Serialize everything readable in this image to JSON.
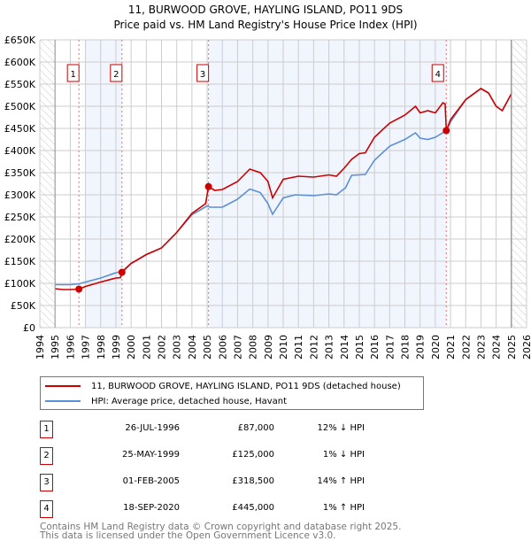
{
  "chart_data": {
    "type": "line",
    "title": "11, BURWOOD GROVE, HAYLING ISLAND, PO11 9DS",
    "subtitle": "Price paid vs. HM Land Registry's House Price Index (HPI)",
    "xlim": [
      1994,
      2026
    ],
    "ylim": [
      0,
      650000
    ],
    "x_ticks": [
      "1994",
      "1995",
      "1996",
      "1997",
      "1998",
      "1999",
      "2000",
      "2001",
      "2002",
      "2003",
      "2004",
      "2005",
      "2006",
      "2007",
      "2008",
      "2009",
      "2010",
      "2011",
      "2012",
      "2013",
      "2014",
      "2015",
      "2016",
      "2017",
      "2018",
      "2019",
      "2020",
      "2021",
      "2022",
      "2023",
      "2024",
      "2025",
      "2026"
    ],
    "y_ticks": [
      {
        "v": 0,
        "label": "£0"
      },
      {
        "v": 50000,
        "label": "£50K"
      },
      {
        "v": 100000,
        "label": "£100K"
      },
      {
        "v": 150000,
        "label": "£150K"
      },
      {
        "v": 200000,
        "label": "£200K"
      },
      {
        "v": 250000,
        "label": "£250K"
      },
      {
        "v": 300000,
        "label": "£300K"
      },
      {
        "v": 350000,
        "label": "£350K"
      },
      {
        "v": 400000,
        "label": "£400K"
      },
      {
        "v": 450000,
        "label": "£450K"
      },
      {
        "v": 500000,
        "label": "£500K"
      },
      {
        "v": 550000,
        "label": "£550K"
      },
      {
        "v": 600000,
        "label": "£600K"
      },
      {
        "v": 650000,
        "label": "£650K"
      }
    ],
    "grid": true,
    "shaded_periods": [
      [
        1997.0,
        1999.4
      ],
      [
        2005.09,
        2020.72
      ]
    ],
    "hatched_periods": [
      [
        1994,
        1995
      ],
      [
        2025,
        2026
      ]
    ],
    "series": [
      {
        "name": "11, BURWOOD GROVE, HAYLING ISLAND, PO11 9DS (detached house)",
        "color": "#cc0000",
        "x": [
          1995,
          1995.5,
          1996,
          1996.57,
          1997,
          1998,
          1999,
          1999.3,
          1999.4,
          2000,
          2001,
          2002,
          2003,
          2004,
          2004.9,
          2005.09,
          2005.5,
          2006,
          2007,
          2007.8,
          2008.5,
          2009,
          2009.3,
          2010,
          2011,
          2012,
          2013,
          2013.5,
          2014,
          2014.5,
          2015,
          2015.4,
          2016,
          2017,
          2018,
          2018.7,
          2019,
          2019.5,
          2020,
          2020.5,
          2020.65,
          2020.72,
          2021,
          2022,
          2023,
          2023.5,
          2024,
          2024.4,
          2025
        ],
        "y": [
          88000,
          86000,
          86000,
          87000,
          93000,
          103000,
          112000,
          113000,
          125000,
          145000,
          165000,
          180000,
          215000,
          258000,
          280000,
          318500,
          310000,
          312000,
          330000,
          358000,
          350000,
          330000,
          293000,
          335000,
          342000,
          340000,
          345000,
          342000,
          360000,
          380000,
          393000,
          395000,
          430000,
          462000,
          480000,
          500000,
          485000,
          490000,
          485000,
          508000,
          505000,
          445000,
          470000,
          515000,
          540000,
          530000,
          500000,
          490000,
          528000
        ]
      },
      {
        "name": "HPI: Average price, detached house, Havant",
        "color": "#5b8fd6",
        "x": [
          1995,
          1996,
          1996.57,
          1997,
          1998,
          1999,
          1999.4,
          2000,
          2001,
          2002,
          2003,
          2004,
          2005,
          2005.2,
          2006,
          2007,
          2007.8,
          2008.5,
          2009,
          2009.3,
          2010,
          2010.8,
          2012,
          2013,
          2013.5,
          2014.1,
          2014.5,
          2015.4,
          2016,
          2017,
          2018,
          2018.7,
          2019,
          2019.5,
          2020,
          2020.72,
          2021,
          2022,
          2023,
          2023.5,
          2024,
          2024.4,
          2025
        ],
        "y": [
          97000,
          97000,
          99000,
          103000,
          112000,
          124000,
          127000,
          145000,
          165000,
          180000,
          215000,
          255000,
          275000,
          272000,
          272000,
          290000,
          313000,
          305000,
          280000,
          256000,
          293000,
          300000,
          298000,
          302000,
          300000,
          316000,
          344000,
          346000,
          378000,
          410000,
          425000,
          440000,
          428000,
          425000,
          430000,
          445000,
          465000,
          515000,
          540000,
          530000,
          500000,
          490000,
          528000
        ]
      }
    ],
    "sales": [
      {
        "n": "1",
        "x": 1996.57,
        "y": 87000,
        "date": "26-JUL-1996",
        "price": "£87,000",
        "hpi": "12% ↓ HPI"
      },
      {
        "n": "2",
        "x": 1999.4,
        "y": 125000,
        "date": "25-MAY-1999",
        "price": "£125,000",
        "hpi": "1% ↓ HPI"
      },
      {
        "n": "3",
        "x": 2005.09,
        "y": 318500,
        "date": "01-FEB-2005",
        "price": "£318,500",
        "hpi": "14% ↑ HPI"
      },
      {
        "n": "4",
        "x": 2020.72,
        "y": 445000,
        "date": "18-SEP-2020",
        "price": "£445,000",
        "hpi": "1% ↑ HPI"
      }
    ],
    "legend": [
      "11, BURWOOD GROVE, HAYLING ISLAND, PO11 9DS (detached house)",
      "HPI: Average price, detached house, Havant"
    ],
    "legend_placement": "below"
  },
  "footer": {
    "line1": "Contains HM Land Registry data © Crown copyright and database right 2025.",
    "line2": "This data is licensed under the Open Government Licence v3.0."
  }
}
